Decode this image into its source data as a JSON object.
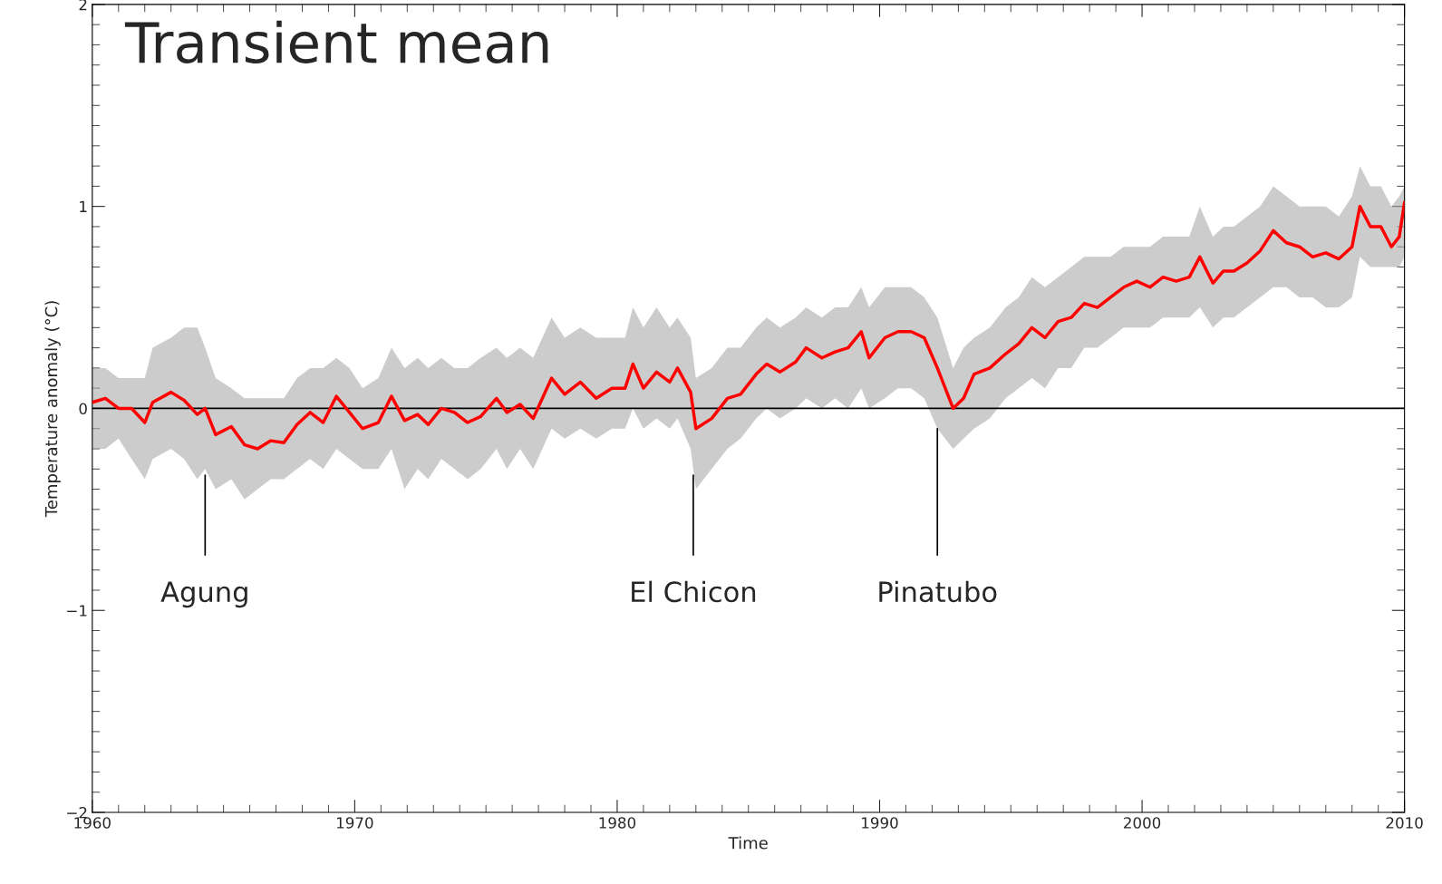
{
  "chart_data": {
    "type": "line",
    "xlabel": "Time",
    "ylabel": "Temperature anomaly (°C)",
    "xlim": [
      1960,
      2010
    ],
    "xticks": [
      1960,
      1970,
      1980,
      1990,
      2000,
      2010
    ],
    "ylim": [
      -2,
      2
    ],
    "yticks": [
      -2,
      -1,
      0,
      1,
      2
    ],
    "grid": false,
    "annotations": [
      "Transient mean",
      {
        "text": "Agung",
        "x": 1964.3,
        "y": -0.33
      },
      {
        "text": "El Chicon",
        "x": 1982.9,
        "y": -0.33
      },
      {
        "text": "Pinatubo",
        "x": 1992.2,
        "y": -0.1
      }
    ],
    "ref_lines": [
      {
        "axis": "y",
        "value": 0,
        "color": "#000000",
        "line_style": "solid"
      }
    ],
    "x": [
      1960,
      1960.5,
      1961,
      1961.5,
      1962,
      1962.3,
      1963,
      1963.5,
      1964,
      1964.3,
      1964.7,
      1965.3,
      1965.8,
      1966.3,
      1966.8,
      1967.3,
      1967.8,
      1968.3,
      1968.8,
      1969.3,
      1969.8,
      1970.3,
      1970.9,
      1971.4,
      1971.9,
      1972.4,
      1972.8,
      1973.3,
      1973.8,
      1974.3,
      1974.8,
      1975.4,
      1975.8,
      1976.3,
      1976.8,
      1977.5,
      1978,
      1978.6,
      1979.2,
      1979.8,
      1980.3,
      1980.6,
      1981,
      1981.5,
      1982,
      1982.3,
      1982.8,
      1983,
      1983.6,
      1984.2,
      1984.7,
      1985.3,
      1985.7,
      1986.2,
      1986.8,
      1987.2,
      1987.8,
      1988.3,
      1988.8,
      1989.3,
      1989.6,
      1990.2,
      1990.7,
      1991.2,
      1991.7,
      1992.2,
      1992.8,
      1993.2,
      1993.6,
      1994.2,
      1994.8,
      1995.3,
      1995.8,
      1996.3,
      1996.8,
      1997.3,
      1997.8,
      1998.3,
      1998.8,
      1999.3,
      1999.8,
      2000.3,
      2000.8,
      2001.3,
      2001.8,
      2002.2,
      2002.7,
      2003.1,
      2003.5,
      2004,
      2004.5,
      2005,
      2005.5,
      2006,
      2006.5,
      2007,
      2007.5,
      2008,
      2008.3,
      2008.7,
      2009.1,
      2009.5,
      2009.8,
      2010
    ],
    "series": [
      {
        "color": "#ff0000",
        "line_style": "solid",
        "values": [
          0.03,
          0.05,
          0.0,
          0.0,
          -0.07,
          0.03,
          0.08,
          0.04,
          -0.03,
          0.0,
          -0.13,
          -0.09,
          -0.18,
          -0.2,
          -0.16,
          -0.17,
          -0.08,
          -0.02,
          -0.07,
          0.06,
          -0.02,
          -0.1,
          -0.07,
          0.06,
          -0.06,
          -0.03,
          -0.08,
          0.0,
          -0.02,
          -0.07,
          -0.04,
          0.05,
          -0.02,
          0.02,
          -0.05,
          0.15,
          0.07,
          0.13,
          0.05,
          0.1,
          0.1,
          0.22,
          0.1,
          0.18,
          0.13,
          0.2,
          0.08,
          -0.1,
          -0.05,
          0.05,
          0.07,
          0.17,
          0.22,
          0.18,
          0.23,
          0.3,
          0.25,
          0.28,
          0.3,
          0.38,
          0.25,
          0.35,
          0.38,
          0.38,
          0.35,
          0.2,
          0.0,
          0.05,
          0.17,
          0.2,
          0.27,
          0.32,
          0.4,
          0.35,
          0.43,
          0.45,
          0.52,
          0.5,
          0.55,
          0.6,
          0.63,
          0.6,
          0.65,
          0.63,
          0.65,
          0.75,
          0.62,
          0.68,
          0.68,
          0.72,
          0.78,
          0.88,
          0.82,
          0.8,
          0.75,
          0.77,
          0.74,
          0.8,
          1.0,
          0.9,
          0.9,
          0.8,
          0.85,
          1.02
        ],
        "lower": [
          -0.2,
          -0.2,
          -0.15,
          -0.25,
          -0.35,
          -0.25,
          -0.2,
          -0.25,
          -0.35,
          -0.3,
          -0.4,
          -0.35,
          -0.45,
          -0.4,
          -0.35,
          -0.35,
          -0.3,
          -0.25,
          -0.3,
          -0.2,
          -0.25,
          -0.3,
          -0.3,
          -0.2,
          -0.4,
          -0.3,
          -0.35,
          -0.25,
          -0.3,
          -0.35,
          -0.3,
          -0.2,
          -0.3,
          -0.2,
          -0.3,
          -0.1,
          -0.15,
          -0.1,
          -0.15,
          -0.1,
          -0.1,
          0.0,
          -0.1,
          -0.05,
          -0.1,
          -0.05,
          -0.2,
          -0.4,
          -0.3,
          -0.2,
          -0.15,
          -0.05,
          0.0,
          -0.05,
          0.0,
          0.05,
          0.0,
          0.05,
          0.0,
          0.1,
          0.0,
          0.05,
          0.1,
          0.1,
          0.05,
          -0.1,
          -0.2,
          -0.15,
          -0.1,
          -0.05,
          0.05,
          0.1,
          0.15,
          0.1,
          0.2,
          0.2,
          0.3,
          0.3,
          0.35,
          0.4,
          0.4,
          0.4,
          0.45,
          0.45,
          0.45,
          0.5,
          0.4,
          0.45,
          0.45,
          0.5,
          0.55,
          0.6,
          0.6,
          0.55,
          0.55,
          0.5,
          0.5,
          0.55,
          0.75,
          0.7,
          0.7,
          0.7,
          0.7,
          0.75
        ],
        "upper": [
          0.2,
          0.2,
          0.15,
          0.15,
          0.15,
          0.3,
          0.35,
          0.4,
          0.4,
          0.3,
          0.15,
          0.1,
          0.05,
          0.05,
          0.05,
          0.05,
          0.15,
          0.2,
          0.2,
          0.25,
          0.2,
          0.1,
          0.15,
          0.3,
          0.2,
          0.25,
          0.2,
          0.25,
          0.2,
          0.2,
          0.25,
          0.3,
          0.25,
          0.3,
          0.25,
          0.45,
          0.35,
          0.4,
          0.35,
          0.35,
          0.35,
          0.5,
          0.4,
          0.5,
          0.4,
          0.45,
          0.35,
          0.15,
          0.2,
          0.3,
          0.3,
          0.4,
          0.45,
          0.4,
          0.45,
          0.5,
          0.45,
          0.5,
          0.5,
          0.6,
          0.5,
          0.6,
          0.6,
          0.6,
          0.55,
          0.45,
          0.2,
          0.3,
          0.35,
          0.4,
          0.5,
          0.55,
          0.65,
          0.6,
          0.65,
          0.7,
          0.75,
          0.75,
          0.75,
          0.8,
          0.8,
          0.8,
          0.85,
          0.85,
          0.85,
          1.0,
          0.85,
          0.9,
          0.9,
          0.95,
          1.0,
          1.1,
          1.05,
          1.0,
          1.0,
          1.0,
          0.95,
          1.05,
          1.2,
          1.1,
          1.1,
          1.0,
          1.05,
          1.1
        ]
      }
    ]
  }
}
